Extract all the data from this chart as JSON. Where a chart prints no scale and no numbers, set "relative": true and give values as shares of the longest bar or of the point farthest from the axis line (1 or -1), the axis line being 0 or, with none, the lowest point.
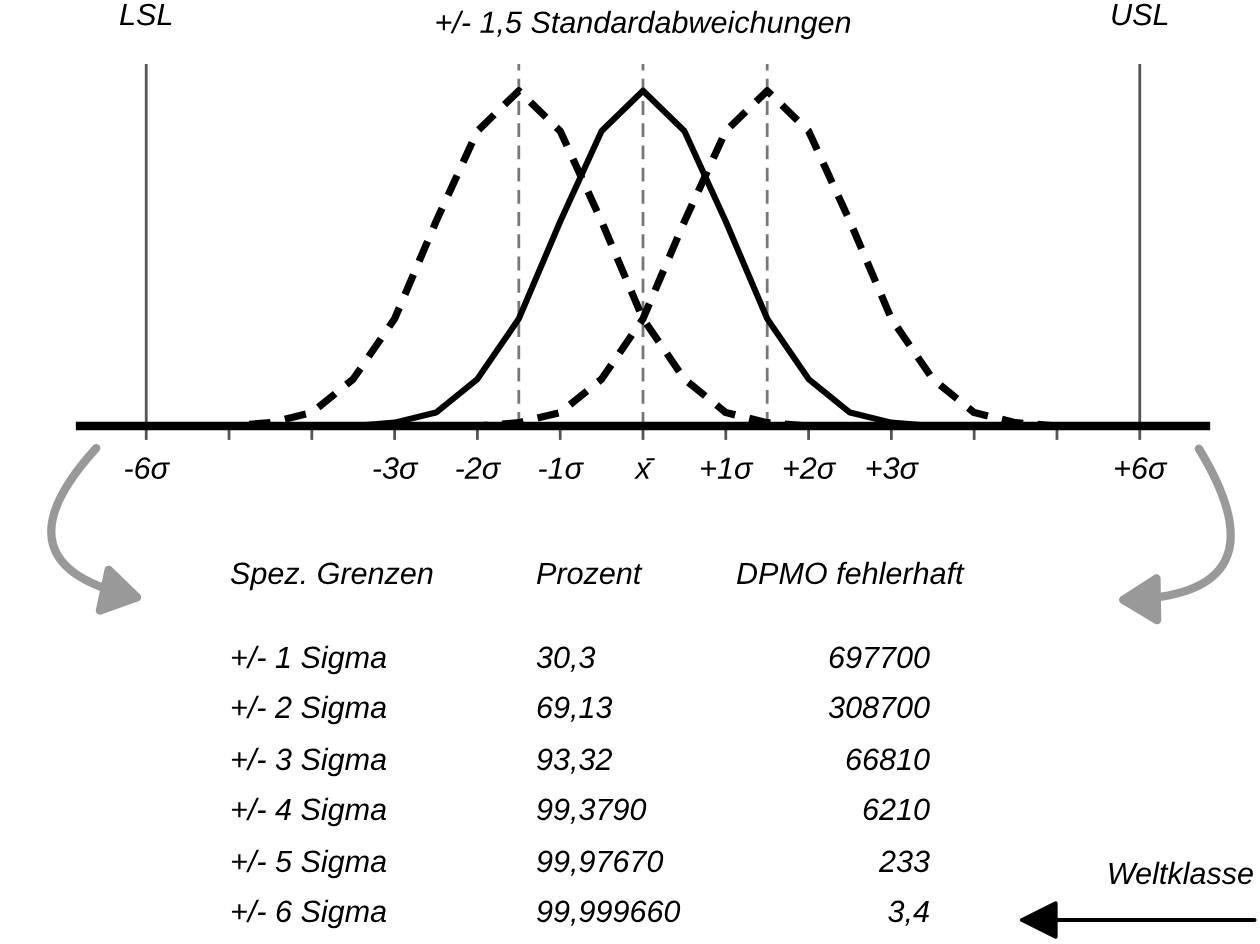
{
  "chart_data": {
    "type": "line",
    "relative": true,
    "title": "+/- 1,5 Standardabweichungen",
    "x": [
      -6.5,
      -6,
      -5.5,
      -5,
      -4.5,
      -4,
      -3.5,
      -3,
      -2.5,
      -2,
      -1.5,
      -1,
      -0.5,
      0,
      0.5,
      1,
      1.5,
      2,
      2.5,
      3,
      3.5,
      4,
      4.5,
      5,
      5.5,
      6,
      6.5
    ],
    "series": [
      {
        "color": "#000000",
        "line_style": "solid",
        "values": [
          0,
          0,
          0,
          0,
          0,
          0,
          0,
          0.01,
          0.04,
          0.14,
          0.32,
          0.61,
          0.88,
          1,
          0.88,
          0.61,
          0.32,
          0.14,
          0.04,
          0.01,
          0,
          0,
          0,
          0,
          0,
          0,
          0
        ]
      },
      {
        "color": "#000000",
        "line_style": "dashed",
        "values": [
          0,
          0,
          0,
          0,
          0.01,
          0.04,
          0.14,
          0.32,
          0.61,
          0.88,
          1,
          0.88,
          0.61,
          0.32,
          0.14,
          0.04,
          0.01,
          0,
          0,
          0,
          0,
          0,
          0,
          0,
          0,
          0,
          0
        ]
      },
      {
        "color": "#000000",
        "line_style": "dashed",
        "values": [
          0,
          0,
          0,
          0,
          0,
          0,
          0,
          0,
          0,
          0,
          0.01,
          0.04,
          0.14,
          0.32,
          0.61,
          0.88,
          1,
          0.88,
          0.61,
          0.32,
          0.14,
          0.04,
          0.01,
          0,
          0,
          0,
          0
        ]
      }
    ],
    "xlim": [
      -6.8,
      6.8
    ],
    "xticks": [
      {
        "value": -6,
        "label": "-6σ"
      },
      {
        "value": -5,
        "label": null
      },
      {
        "value": -4,
        "label": null
      },
      {
        "value": -3,
        "label": "-3σ"
      },
      {
        "value": -2,
        "label": "-2σ"
      },
      {
        "value": -1,
        "label": "-1σ"
      },
      {
        "value": 0,
        "label": "x̄"
      },
      {
        "value": 1,
        "label": "+1σ"
      },
      {
        "value": 2,
        "label": "+2σ"
      },
      {
        "value": 3,
        "label": "+3σ"
      },
      {
        "value": 4,
        "label": null
      },
      {
        "value": 5,
        "label": null
      },
      {
        "value": 6,
        "label": "+6σ"
      }
    ],
    "ref_lines": [
      {
        "axis": "x",
        "value": -6,
        "label": "LSL",
        "color": "#555555",
        "line_style": "solid"
      },
      {
        "axis": "x",
        "value": 6,
        "label": "USL",
        "color": "#555555",
        "line_style": "solid"
      },
      {
        "axis": "x",
        "value": -1.5,
        "color": "#777777",
        "line_style": "dashed"
      },
      {
        "axis": "x",
        "value": 0,
        "color": "#777777",
        "line_style": "dashed"
      },
      {
        "axis": "x",
        "value": 1.5,
        "color": "#777777",
        "line_style": "dashed"
      }
    ],
    "grid": false,
    "legend": false,
    "marker": "none",
    "annotations": [
      "Spez. Grenzen",
      "Prozent",
      "DPMO fehlerhaft",
      "+/- 1 Sigma",
      "30,3",
      "697700",
      "+/- 2 Sigma",
      "69,13",
      "308700",
      "+/- 3 Sigma",
      "93,32",
      "66810",
      "+/- 4 Sigma",
      "99,3790",
      "6210",
      "+/- 5 Sigma",
      "99,97670",
      "233",
      "+/- 6 Sigma",
      "99,999660",
      "3,4",
      "Weltklasse"
    ]
  }
}
